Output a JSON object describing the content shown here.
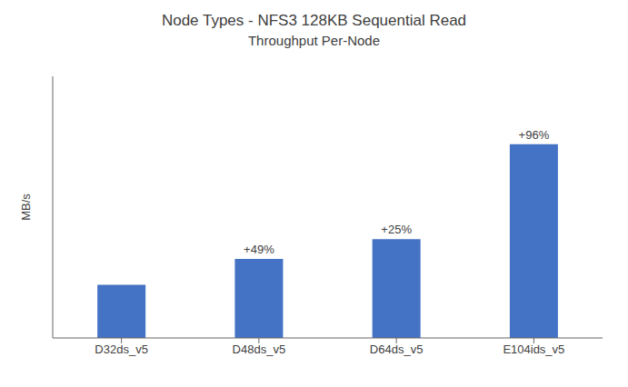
{
  "chart_data": {
    "type": "bar",
    "title": "Node Types - NFS3 128KB Sequential Read",
    "subtitle": "Throughput Per-Node",
    "ylabel": "MB/s",
    "categories": [
      "D32ds_v5",
      "D48ds_v5",
      "D64ds_v5",
      "E104ids_v5"
    ],
    "values": [
      1.0,
      1.49,
      1.8625,
      3.6505
    ],
    "annotations": [
      null,
      "+49%",
      "+25%",
      "+96%"
    ],
    "color": "#4472C4",
    "ylim": [
      0,
      4.928175
    ],
    "grid": false,
    "tick_labels": "x"
  }
}
